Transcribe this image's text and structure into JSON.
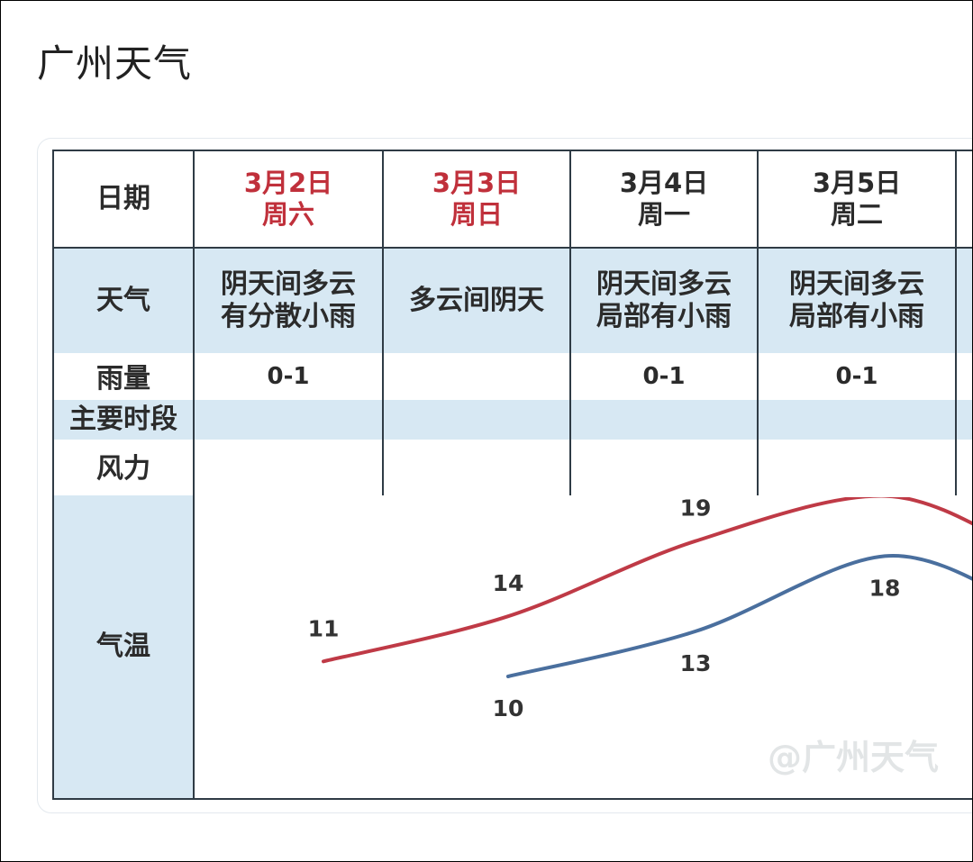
{
  "page": {
    "title": "广州天气"
  },
  "table": {
    "row_labels": {
      "date": "日期",
      "weather": "天气",
      "rain_line1": "雨量",
      "rain_line2": "主要时段",
      "wind": "风力",
      "temp": "气温"
    },
    "columns": [
      {
        "date": "3月2日",
        "weekday": "周六",
        "weekend": true,
        "weather_line1": "阴天间多云",
        "weather_line2": "有分散小雨",
        "rain": "0-1"
      },
      {
        "date": "3月3日",
        "weekday": "周日",
        "weekend": true,
        "weather_line1": "多云间阴天",
        "weather_line2": "",
        "rain": ""
      },
      {
        "date": "3月4日",
        "weekday": "周一",
        "weekend": false,
        "weather_line1": "阴天间多云",
        "weather_line2": "局部有小雨",
        "rain": "0-1"
      },
      {
        "date": "3月5日",
        "weekday": "周二",
        "weekend": false,
        "weather_line1": "阴天间多云",
        "weather_line2": "局部有小雨",
        "rain": "0-1"
      }
    ],
    "colors": {
      "weekend_date": "#c0303b",
      "band_blue": "#d7e8f3",
      "band_white": "#ffffff",
      "high_line": "#bf3a46",
      "low_line": "#4a6f9e"
    }
  },
  "chart_data": {
    "type": "line",
    "categories": [
      "3月2日",
      "3月3日",
      "3月4日",
      "3月5日"
    ],
    "series": [
      {
        "values": [
          11,
          14,
          19,
          22
        ],
        "color": "#bf3a46"
      },
      {
        "values": [
          null,
          10,
          13,
          18
        ],
        "color": "#4a6f9e"
      }
    ]
  },
  "watermark": {
    "text": "@广州天气"
  }
}
